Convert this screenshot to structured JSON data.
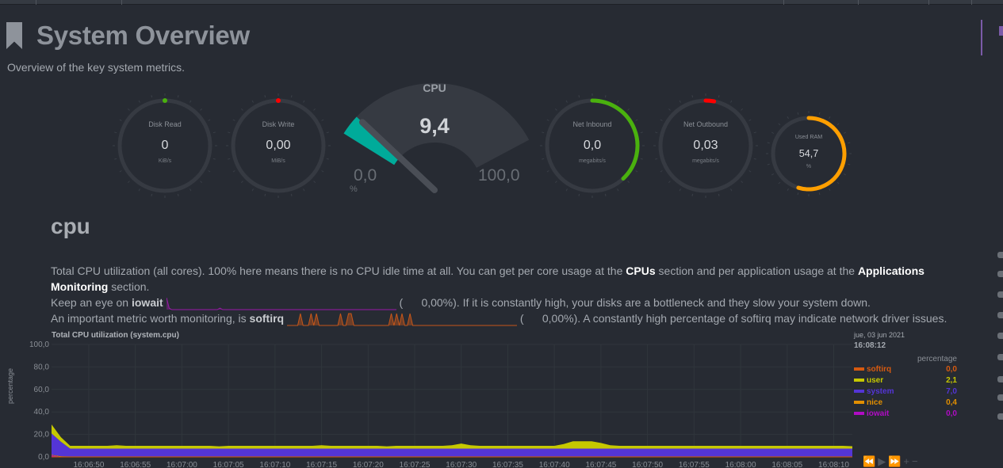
{
  "header": {
    "title": "System Overview",
    "subtitle": "Overview of the key system metrics."
  },
  "gauges": [
    {
      "label": "Disk Read",
      "value": "0",
      "unit": "KiB/s",
      "fraction": 0.0,
      "color": "#4ab10e"
    },
    {
      "label": "Disk Write",
      "value": "0,00",
      "unit": "MiB/s",
      "fraction": 0.0,
      "color": "#ff0000"
    },
    {
      "label": "Net Inbound",
      "value": "0,0",
      "unit": "megabits/s",
      "fraction": 0.38,
      "color": "#4ab10e"
    },
    {
      "label": "Net Outbound",
      "value": "0,03",
      "unit": "megabits/s",
      "fraction": 0.03,
      "color": "#ff0000"
    },
    {
      "label": "Used RAM",
      "value": "54,7",
      "unit": "%",
      "fraction": 0.547,
      "color": "#ff9f00"
    }
  ],
  "cpu_gauge": {
    "title": "CPU",
    "value": "9,4",
    "min": "0,0",
    "max": "100,0",
    "unit": "%",
    "percent": 9.4,
    "color": "#00ab9a"
  },
  "section": {
    "title": "cpu",
    "p1a": "Total CPU utilization (all cores). 100% here means there is no CPU idle time at all. You can get per core usage at the ",
    "p1_link1": "CPUs",
    "p1b": " section and per application usage at the ",
    "p1_link2a": "Applications",
    "p1_link2b": "Monitoring",
    "p1c": " section.",
    "p2a": "Keep an eye on ",
    "p2_bold": "iowait",
    "p2_val": "(      0,00%). If it is constantly high, your disks are a bottleneck and they slow your system down.",
    "p3a": "An important metric worth monitoring, is ",
    "p3_bold": "softirq",
    "p3_val": "(      0,00%). A constantly high percentage of softirq may indicate network driver issues.",
    "iowait_spark": [
      8,
      1,
      0,
      0,
      0,
      0,
      0,
      0,
      0,
      0,
      0,
      0,
      0,
      0,
      0,
      0,
      0,
      0,
      0,
      0,
      1,
      0,
      0,
      0,
      0,
      0,
      0,
      0,
      0,
      0,
      0,
      0,
      0,
      0,
      0,
      0,
      0,
      0,
      0,
      0,
      0,
      0,
      0,
      0,
      0,
      0,
      0,
      0,
      0,
      0,
      0,
      0,
      0,
      0,
      0,
      0,
      0,
      0,
      0,
      0,
      0,
      0,
      0,
      0,
      0,
      0,
      0,
      0,
      0,
      0,
      0,
      0,
      0,
      0,
      0,
      0,
      0,
      0,
      0,
      0,
      0,
      0,
      0,
      0,
      0,
      0,
      0
    ],
    "softirq_spark": [
      0,
      0,
      0,
      0,
      0,
      1,
      0,
      0,
      0,
      1,
      0,
      1,
      0,
      0,
      0,
      0,
      0,
      0,
      0,
      0,
      1,
      0,
      0,
      1,
      1,
      0,
      0,
      0,
      0,
      0,
      0,
      0,
      0,
      0,
      0,
      0,
      0,
      0,
      0,
      1,
      0,
      1,
      0,
      1,
      0,
      0,
      1,
      0,
      0,
      0,
      0,
      0,
      0,
      0,
      0,
      0,
      0,
      0,
      0,
      0,
      0,
      0,
      0,
      0,
      0,
      0,
      0,
      0,
      0,
      0,
      0,
      0,
      0,
      0,
      0,
      0,
      0,
      0,
      0,
      0,
      0,
      0,
      0,
      0,
      0,
      0,
      0
    ]
  },
  "chart_data": {
    "type": "area",
    "title": "Total CPU utilization (system.cpu)",
    "ylabel": "percentage",
    "ylim": [
      0,
      100
    ],
    "yticks": [
      "100,0",
      "80,0",
      "60,0",
      "40,0",
      "20,0",
      "0,0"
    ],
    "ytick_values": [
      100,
      80,
      60,
      40,
      20,
      0
    ],
    "x_start": "16:06:46",
    "interval_s": 1,
    "xticks": [
      "16:06:50",
      "16:06:55",
      "16:07:00",
      "16:07:05",
      "16:07:10",
      "16:07:15",
      "16:07:20",
      "16:07:25",
      "16:07:30",
      "16:07:35",
      "16:07:40",
      "16:07:45",
      "16:07:50",
      "16:07:55",
      "16:08:00",
      "16:08:05",
      "16:08:10"
    ],
    "xtick_offsets_s": [
      4,
      9,
      14,
      19,
      24,
      29,
      34,
      39,
      44,
      49,
      54,
      59,
      64,
      69,
      74,
      79,
      84
    ],
    "series": [
      {
        "name": "iowait",
        "color": "#b00cc4",
        "values": [
          1.5,
          0.2,
          0,
          0,
          0,
          0,
          0,
          0,
          0,
          0,
          0,
          0,
          0,
          0,
          0,
          0,
          0,
          0,
          0,
          0,
          0,
          0,
          0,
          0,
          0,
          0,
          0,
          0,
          0,
          0,
          0,
          0,
          0,
          0,
          0,
          0,
          0,
          0,
          0,
          0,
          0,
          0,
          0,
          0,
          0,
          0,
          0,
          0,
          0,
          0,
          0,
          0,
          0,
          0,
          0,
          0,
          0,
          0,
          0,
          0,
          0,
          0,
          0,
          0,
          0,
          0,
          0,
          0,
          0,
          0,
          0,
          0,
          0,
          0,
          0,
          0,
          0,
          0,
          0,
          0,
          0,
          0,
          0,
          0,
          0,
          0,
          0
        ]
      },
      {
        "name": "nice",
        "color": "#e28f00",
        "values": [
          0.4,
          0.4,
          0.4,
          0.4,
          0.4,
          0.4,
          0.4,
          0.4,
          0.4,
          0.4,
          0.4,
          0.4,
          0.4,
          0.4,
          0.4,
          0.4,
          0.4,
          0.4,
          0.4,
          0.4,
          0.4,
          0.4,
          0.4,
          0.4,
          0.4,
          0.4,
          0.4,
          0.4,
          0.4,
          0.4,
          0.4,
          0.4,
          0.4,
          0.4,
          0.4,
          0.4,
          0.4,
          0.4,
          0.4,
          0.4,
          0.4,
          0.4,
          0.4,
          0.4,
          0.4,
          0.4,
          0.4,
          0.4,
          0.4,
          0.4,
          0.4,
          0.4,
          0.4,
          0.4,
          0.4,
          0.4,
          0.4,
          0.4,
          0.4,
          0.4,
          0.4,
          0.4,
          0.4,
          0.4,
          0.4,
          0.4,
          0.4,
          0.4,
          0.4,
          0.4,
          0.4,
          0.4,
          0.4,
          0.4,
          0.4,
          0.4,
          0.4,
          0.4,
          0.4,
          0.4,
          0.4,
          0.4,
          0.4,
          0.4,
          0.4,
          0.4,
          0.4
        ]
      },
      {
        "name": "system",
        "color": "#5435d6",
        "values": [
          19,
          13,
          7,
          7,
          7,
          7,
          7,
          7,
          7,
          7,
          7,
          7,
          7,
          7,
          7,
          7,
          7,
          7,
          7,
          7,
          7,
          7,
          7,
          7,
          7,
          7,
          7,
          7,
          7,
          7,
          7,
          7,
          7,
          7,
          7,
          7,
          7,
          7,
          7,
          7,
          7,
          7,
          7,
          7,
          7,
          7,
          7,
          7,
          7,
          7,
          7,
          7,
          7,
          7,
          7,
          7,
          7,
          7,
          7,
          7,
          7,
          7,
          7,
          7,
          7,
          7,
          7,
          7,
          7,
          7,
          7,
          7,
          7,
          7,
          7,
          7,
          7,
          7,
          7,
          7,
          7,
          7,
          7,
          7,
          7,
          7,
          7
        ]
      },
      {
        "name": "user",
        "color": "#c6c800",
        "values": [
          8,
          4,
          2.5,
          2.5,
          2.5,
          2.5,
          2.5,
          3,
          2.5,
          2.5,
          2.5,
          2.5,
          2.5,
          2.5,
          2.5,
          2.5,
          2.5,
          2.5,
          2,
          2.5,
          2.5,
          2.5,
          2.5,
          2.5,
          2.5,
          2.5,
          2.5,
          2.5,
          2.5,
          3,
          2.5,
          2.5,
          2.5,
          2.5,
          2.5,
          2.5,
          2,
          2.5,
          2.5,
          2.5,
          2.5,
          2.5,
          2.5,
          3,
          4.5,
          3,
          2.5,
          2.5,
          2.5,
          2.5,
          2.5,
          2.5,
          2.5,
          2.5,
          2.5,
          4,
          6.5,
          6.5,
          6.5,
          5,
          3,
          2.5,
          2.5,
          2.5,
          2.5,
          2.5,
          2.5,
          2.5,
          2.5,
          2.5,
          2.5,
          2.5,
          2.5,
          2.5,
          2.5,
          2.5,
          2.5,
          2.5,
          2.5,
          2.5,
          2.5,
          2.5,
          2.5,
          2.5,
          2.5,
          2.5,
          2.1
        ]
      },
      {
        "name": "softirq",
        "color": "#d65a10",
        "values": [
          0,
          0,
          0,
          0,
          0,
          0,
          0,
          0,
          0,
          0,
          0,
          0,
          0,
          0,
          0,
          0,
          0,
          0,
          0,
          0,
          0,
          0,
          0,
          0,
          0,
          0,
          0,
          0,
          0,
          0,
          0,
          0,
          0,
          0,
          0,
          0,
          0,
          0,
          0,
          0,
          0,
          0,
          0,
          0,
          0,
          0,
          0,
          0,
          0,
          0,
          0,
          0,
          0,
          0,
          0,
          0,
          0,
          0,
          0,
          0,
          0,
          0,
          0,
          0,
          0,
          0,
          0,
          0,
          0,
          0,
          0,
          0,
          0,
          0,
          0,
          0,
          0,
          0,
          0,
          0,
          0,
          0,
          0,
          0,
          0,
          0,
          0
        ]
      }
    ],
    "legend": {
      "date": "jue, 03 jun 2021",
      "time": "16:08:12",
      "units": "percentage",
      "items": [
        {
          "name": "softirq",
          "value": "0,0",
          "color": "#d65a10"
        },
        {
          "name": "user",
          "value": "2,1",
          "color": "#c6c800"
        },
        {
          "name": "system",
          "value": "7,0",
          "color": "#5435d6"
        },
        {
          "name": "nice",
          "value": "0,4",
          "color": "#e28f00"
        },
        {
          "name": "iowait",
          "value": "0,0",
          "color": "#b00cc4"
        }
      ]
    },
    "controls": [
      "⏪",
      "▶",
      "⏩",
      "+",
      "−"
    ]
  }
}
